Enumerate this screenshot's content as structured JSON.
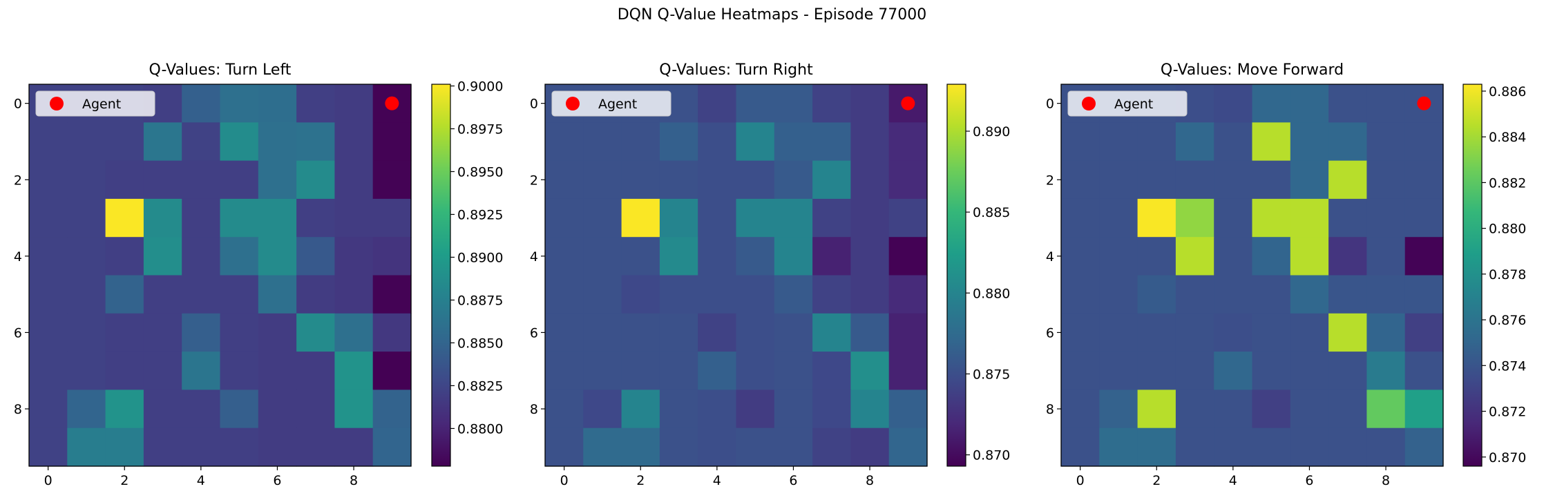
{
  "suptitle": "DQN Q-Value Heatmaps - Episode 77000",
  "colormap": "viridis",
  "agent_color": "#ff0000",
  "chart_data": [
    {
      "type": "heatmap",
      "title": "Q-Values: Turn Left",
      "legend": {
        "label": "Agent",
        "placement": "upper-left"
      },
      "agent": {
        "row": 0,
        "col": 9
      },
      "x_ticks": [
        0,
        2,
        4,
        6,
        8
      ],
      "y_ticks": [
        0,
        2,
        4,
        6,
        8
      ],
      "colorbar": {
        "min": 0.8778,
        "max": 0.9001,
        "ticks": [
          0.88,
          0.8825,
          0.885,
          0.8875,
          0.89,
          0.8925,
          0.895,
          0.8975,
          0.9
        ],
        "tick_labels": [
          "0.8800",
          "0.8825",
          "0.8850",
          "0.8875",
          "0.8900",
          "0.8925",
          "0.8950",
          "0.8975",
          "0.9000"
        ]
      },
      "values": [
        [
          0.8822,
          0.8822,
          0.8822,
          0.882,
          0.8846,
          0.886,
          0.8858,
          0.882,
          0.8818,
          0.8779
        ],
        [
          0.8822,
          0.8822,
          0.8822,
          0.8866,
          0.8822,
          0.8886,
          0.886,
          0.8862,
          0.8818,
          0.8779
        ],
        [
          0.8822,
          0.8822,
          0.882,
          0.882,
          0.882,
          0.882,
          0.886,
          0.8885,
          0.8818,
          0.8779
        ],
        [
          0.8822,
          0.8822,
          0.9,
          0.8885,
          0.882,
          0.8885,
          0.8885,
          0.882,
          0.8818,
          0.8818
        ],
        [
          0.8822,
          0.8822,
          0.882,
          0.8888,
          0.882,
          0.886,
          0.8885,
          0.884,
          0.8815,
          0.8812
        ],
        [
          0.8822,
          0.8822,
          0.8848,
          0.882,
          0.882,
          0.882,
          0.886,
          0.8818,
          0.8815,
          0.8779
        ],
        [
          0.8822,
          0.8822,
          0.882,
          0.882,
          0.8845,
          0.882,
          0.8818,
          0.8885,
          0.886,
          0.8815
        ],
        [
          0.8822,
          0.8822,
          0.882,
          0.882,
          0.8865,
          0.882,
          0.8818,
          0.8818,
          0.8892,
          0.8778
        ],
        [
          0.8822,
          0.885,
          0.8892,
          0.882,
          0.882,
          0.8845,
          0.8818,
          0.8818,
          0.8892,
          0.8848
        ],
        [
          0.8822,
          0.8872,
          0.8872,
          0.882,
          0.882,
          0.882,
          0.8818,
          0.8818,
          0.8818,
          0.885
        ]
      ]
    },
    {
      "type": "heatmap",
      "title": "Q-Values: Turn Right",
      "legend": {
        "label": "Agent",
        "placement": "upper-left"
      },
      "agent": {
        "row": 0,
        "col": 9
      },
      "x_ticks": [
        0,
        2,
        4,
        6,
        8
      ],
      "y_ticks": [
        0,
        2,
        4,
        6,
        8
      ],
      "colorbar": {
        "min": 0.8693,
        "max": 0.8929,
        "ticks": [
          0.87,
          0.875,
          0.88,
          0.885,
          0.89
        ],
        "tick_labels": [
          "0.870",
          "0.875",
          "0.880",
          "0.885",
          "0.890"
        ]
      },
      "values": [
        [
          0.8752,
          0.8752,
          0.8752,
          0.8752,
          0.874,
          0.876,
          0.876,
          0.874,
          0.8735,
          0.871
        ],
        [
          0.8752,
          0.8752,
          0.8752,
          0.8765,
          0.875,
          0.88,
          0.8765,
          0.8765,
          0.8735,
          0.8722
        ],
        [
          0.8752,
          0.8752,
          0.8752,
          0.8752,
          0.875,
          0.875,
          0.876,
          0.88,
          0.8735,
          0.8722
        ],
        [
          0.8752,
          0.8752,
          0.8928,
          0.88,
          0.875,
          0.88,
          0.88,
          0.874,
          0.8735,
          0.874
        ],
        [
          0.8752,
          0.8752,
          0.8752,
          0.8805,
          0.875,
          0.876,
          0.88,
          0.8715,
          0.8735,
          0.8694
        ],
        [
          0.8752,
          0.8752,
          0.8745,
          0.875,
          0.875,
          0.875,
          0.876,
          0.874,
          0.8735,
          0.8722
        ],
        [
          0.8752,
          0.8752,
          0.8752,
          0.8752,
          0.874,
          0.875,
          0.8752,
          0.88,
          0.876,
          0.8715
        ],
        [
          0.8752,
          0.8752,
          0.8752,
          0.8752,
          0.8765,
          0.875,
          0.8752,
          0.8745,
          0.881,
          0.8715
        ],
        [
          0.8752,
          0.8745,
          0.88,
          0.8752,
          0.875,
          0.8735,
          0.8752,
          0.8745,
          0.88,
          0.8765
        ],
        [
          0.8752,
          0.8775,
          0.8775,
          0.8752,
          0.875,
          0.8752,
          0.8752,
          0.874,
          0.8735,
          0.877
        ]
      ]
    },
    {
      "type": "heatmap",
      "title": "Q-Values: Move Forward",
      "legend": {
        "label": "Agent",
        "placement": "upper-left"
      },
      "agent": {
        "row": 0,
        "col": 9
      },
      "x_ticks": [
        0,
        2,
        4,
        6,
        8
      ],
      "y_ticks": [
        0,
        2,
        4,
        6,
        8
      ],
      "colorbar": {
        "min": 0.8696,
        "max": 0.8863,
        "ticks": [
          0.87,
          0.872,
          0.874,
          0.876,
          0.878,
          0.88,
          0.882,
          0.884,
          0.886
        ],
        "tick_labels": [
          "0.870",
          "0.872",
          "0.874",
          "0.876",
          "0.878",
          "0.880",
          "0.882",
          "0.884",
          "0.886"
        ]
      },
      "values": [
        [
          0.8738,
          0.8738,
          0.8738,
          0.8736,
          0.8734,
          0.8752,
          0.8752,
          0.8738,
          0.8738,
          0.8738
        ],
        [
          0.8738,
          0.8738,
          0.8738,
          0.8752,
          0.8738,
          0.8845,
          0.8752,
          0.8752,
          0.8738,
          0.8738
        ],
        [
          0.8738,
          0.8738,
          0.8738,
          0.8738,
          0.8738,
          0.8738,
          0.8752,
          0.8845,
          0.8738,
          0.8738
        ],
        [
          0.8738,
          0.8738,
          0.8862,
          0.8835,
          0.8738,
          0.8845,
          0.8845,
          0.8738,
          0.8738,
          0.8738
        ],
        [
          0.8738,
          0.8738,
          0.8738,
          0.8845,
          0.8738,
          0.875,
          0.8845,
          0.8722,
          0.8738,
          0.8697
        ],
        [
          0.8738,
          0.8738,
          0.8744,
          0.8738,
          0.8738,
          0.8738,
          0.8752,
          0.874,
          0.874,
          0.874
        ],
        [
          0.8738,
          0.8738,
          0.8738,
          0.8738,
          0.8736,
          0.8738,
          0.8738,
          0.8845,
          0.875,
          0.8728
        ],
        [
          0.8738,
          0.8738,
          0.8738,
          0.8738,
          0.8752,
          0.8738,
          0.8738,
          0.8738,
          0.8765,
          0.8738
        ],
        [
          0.8738,
          0.8748,
          0.8845,
          0.8738,
          0.8738,
          0.8728,
          0.8738,
          0.8738,
          0.8822,
          0.879
        ],
        [
          0.8738,
          0.8755,
          0.8755,
          0.8738,
          0.8738,
          0.8738,
          0.8738,
          0.8738,
          0.8738,
          0.8748
        ]
      ]
    }
  ]
}
